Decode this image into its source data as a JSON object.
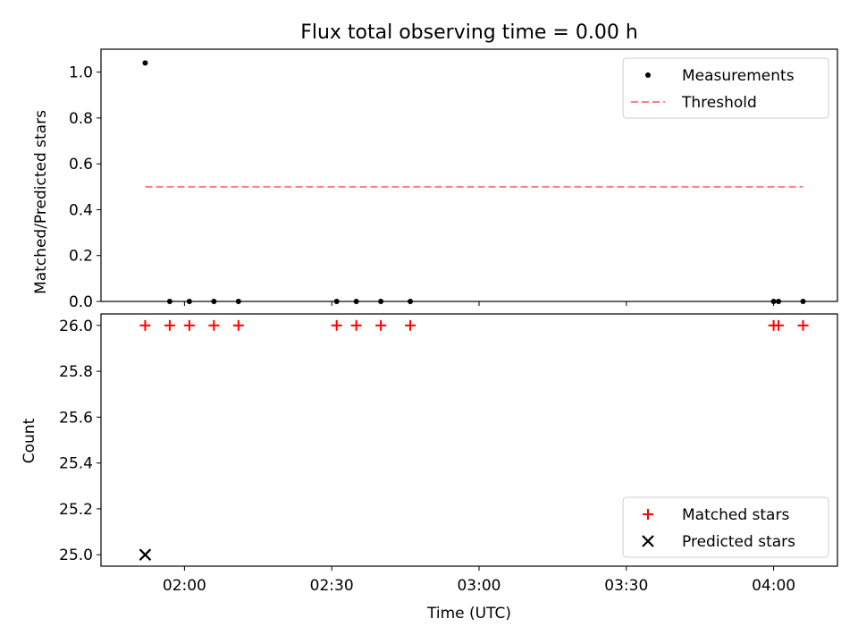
{
  "chart_data": {
    "title": "Flux total observing time = 0.00 h",
    "xlabel": "Time (UTC)",
    "x_ticks": [
      "02:00",
      "02:30",
      "03:00",
      "03:30",
      "04:00"
    ],
    "x_tick_values": [
      "02:00",
      "02:30",
      "03:00",
      "03:30",
      "04:00"
    ],
    "xlim": [
      "01:43",
      "04:13"
    ],
    "panels": [
      {
        "type": "scatter",
        "ylabel": "Matched/Predicted stars",
        "ylim": [
          0,
          1.1
        ],
        "y_ticks": [
          "0.0",
          "0.2",
          "0.4",
          "0.6",
          "0.8",
          "1.0"
        ],
        "y_tick_values": [
          0,
          0.2,
          0.4,
          0.6,
          0.8,
          1.0
        ],
        "legend_position": "upper right",
        "series": [
          {
            "name": "Measurements",
            "kind": "scatter",
            "marker": "dot",
            "color": "#000000",
            "x": [
              "01:52",
              "01:57",
              "02:01",
              "02:06",
              "02:11",
              "02:31",
              "02:35",
              "02:40",
              "02:46",
              "04:00",
              "04:01",
              "04:06"
            ],
            "y": [
              1.04,
              0,
              0,
              0,
              0,
              0,
              0,
              0,
              0,
              0,
              0,
              0
            ]
          },
          {
            "name": "Threshold",
            "kind": "line",
            "dash": "dashed",
            "color": "#ff7f7f",
            "x": [
              "01:52",
              "04:06"
            ],
            "y": [
              0.5,
              0.5
            ]
          }
        ]
      },
      {
        "type": "scatter",
        "ylabel": "Count",
        "ylim": [
          24.95,
          26.05
        ],
        "y_ticks": [
          "25.0",
          "25.2",
          "25.4",
          "25.6",
          "25.8",
          "26.0"
        ],
        "y_tick_values": [
          25.0,
          25.2,
          25.4,
          25.6,
          25.8,
          26.0
        ],
        "legend_position": "lower right",
        "series": [
          {
            "name": "Matched stars",
            "kind": "scatter",
            "marker": "plus",
            "color": "#ff0000",
            "x": [
              "01:52",
              "01:57",
              "02:01",
              "02:06",
              "02:11",
              "02:31",
              "02:35",
              "02:40",
              "02:46",
              "04:00",
              "04:01",
              "04:06"
            ],
            "y": [
              26,
              26,
              26,
              26,
              26,
              26,
              26,
              26,
              26,
              26,
              26,
              26
            ]
          },
          {
            "name": "Predicted stars",
            "kind": "scatter",
            "marker": "x",
            "color": "#000000",
            "x": [
              "01:52"
            ],
            "y": [
              25
            ]
          }
        ]
      }
    ]
  }
}
